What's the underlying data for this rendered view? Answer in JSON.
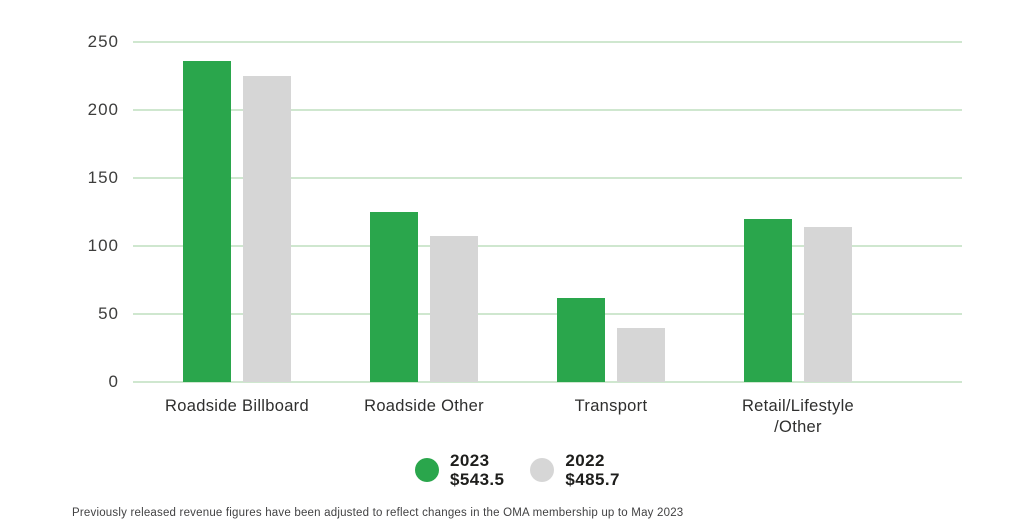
{
  "chart_data": {
    "type": "bar",
    "title": "",
    "xlabel": "",
    "ylabel": "",
    "categories": [
      "Roadside Billboard",
      "Roadside Other",
      "Transport",
      "Retail/Lifestyle\n/Other"
    ],
    "series": [
      {
        "name": "2023",
        "total_label": "$543.5",
        "color": "#2AA64C",
        "values": [
          236,
          125,
          62,
          120
        ]
      },
      {
        "name": "2022",
        "total_label": "$485.7",
        "color": "#D6D6D6",
        "values": [
          225,
          107,
          40,
          114
        ]
      }
    ],
    "yticks": [
      0,
      50,
      100,
      150,
      200,
      250
    ],
    "ylim": [
      0,
      250
    ],
    "grid": true,
    "gridline_color": "#CFE7CF",
    "legend_position": "bottom",
    "footnote": "Previously released revenue figures have been adjusted to reflect changes in the OMA membership up to May 2023"
  }
}
